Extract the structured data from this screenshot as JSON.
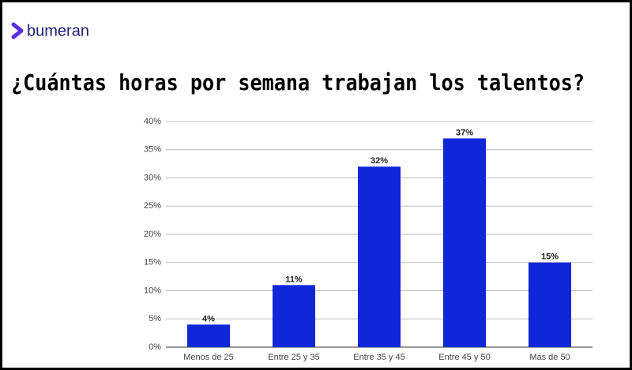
{
  "brand": "bumeran",
  "chart_data": {
    "type": "bar",
    "title": "¿Cuántas horas por semana trabajan los talentos?",
    "categories": [
      "Menos de 25",
      "Entre 25 y 35",
      "Entre 35 y 45",
      "Entre 45 y 50",
      "Más de 50"
    ],
    "values": [
      4,
      11,
      32,
      37,
      15
    ],
    "value_labels": [
      "4%",
      "11%",
      "32%",
      "37%",
      "15%"
    ],
    "color": "#0f27d9",
    "ylim": [
      0,
      40
    ],
    "yticks": [
      {
        "value": 0,
        "label": "0%"
      },
      {
        "value": 5,
        "label": "5%"
      },
      {
        "value": 10,
        "label": "10%"
      },
      {
        "value": 15,
        "label": "15%"
      },
      {
        "value": 20,
        "label": "20%"
      },
      {
        "value": 25,
        "label": "25%"
      },
      {
        "value": 30,
        "label": "30%"
      },
      {
        "value": 35,
        "label": "35%"
      },
      {
        "value": 40,
        "label": "40%"
      }
    ],
    "grid": true
  }
}
